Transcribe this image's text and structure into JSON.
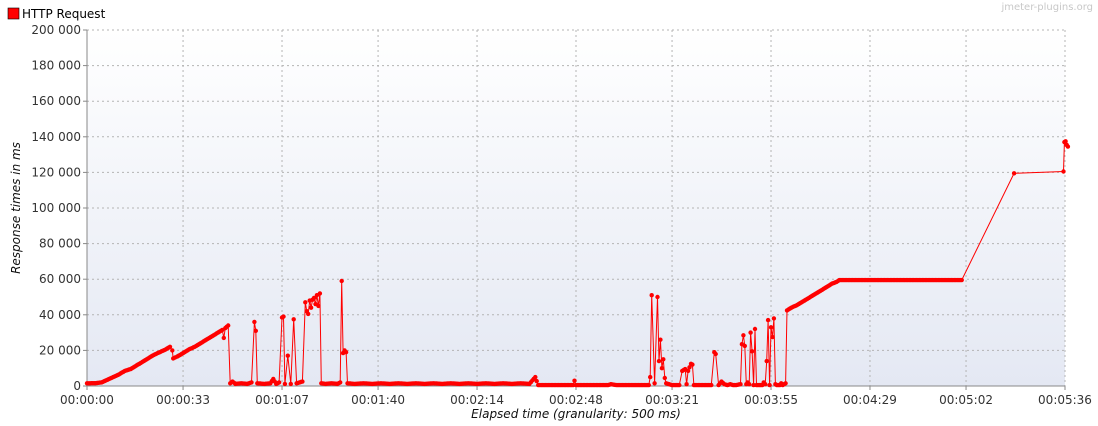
{
  "watermark": "jmeter-plugins.org",
  "chart_data": {
    "type": "line",
    "title": "",
    "xlabel": "Elapsed time (granularity: 500 ms)",
    "ylabel": "Response times in ms",
    "xlim": [
      0,
      336
    ],
    "ylim": [
      0,
      200000
    ],
    "x_ticks": [
      {
        "value": 0,
        "label": "00:00:00"
      },
      {
        "value": 33,
        "label": "00:00:33"
      },
      {
        "value": 67,
        "label": "00:01:07"
      },
      {
        "value": 100,
        "label": "00:01:40"
      },
      {
        "value": 134,
        "label": "00:02:14"
      },
      {
        "value": 168,
        "label": "00:02:48"
      },
      {
        "value": 201,
        "label": "00:03:21"
      },
      {
        "value": 235,
        "label": "00:03:55"
      },
      {
        "value": 269,
        "label": "00:04:29"
      },
      {
        "value": 302,
        "label": "00:05:02"
      },
      {
        "value": 336,
        "label": "00:05:36"
      }
    ],
    "y_ticks": [
      {
        "value": 0,
        "label": "0"
      },
      {
        "value": 20000,
        "label": "20 000"
      },
      {
        "value": 40000,
        "label": "40 000"
      },
      {
        "value": 60000,
        "label": "60 000"
      },
      {
        "value": 80000,
        "label": "80 000"
      },
      {
        "value": 100000,
        "label": "100 000"
      },
      {
        "value": 120000,
        "label": "120 000"
      },
      {
        "value": 140000,
        "label": "140 000"
      },
      {
        "value": 160000,
        "label": "160 000"
      },
      {
        "value": 180000,
        "label": "180 000"
      },
      {
        "value": 200000,
        "label": "200 000"
      }
    ],
    "grid": true,
    "legend_position": "top-left",
    "series": [
      {
        "name": "HTTP Request",
        "color": "#ff0000",
        "points": [
          [
            0,
            1500
          ],
          [
            3,
            1600
          ],
          [
            5,
            2000
          ],
          [
            7,
            3500
          ],
          [
            9,
            5000
          ],
          [
            11,
            6500
          ],
          [
            13,
            8500
          ],
          [
            15,
            9500
          ],
          [
            17,
            11500
          ],
          [
            19,
            13500
          ],
          [
            21,
            15500
          ],
          [
            23,
            17500
          ],
          [
            25,
            19000
          ],
          [
            27,
            20500
          ],
          [
            28.5,
            22000
          ],
          [
            29.3,
            20000
          ],
          [
            29.6,
            15500
          ],
          [
            31,
            16500
          ],
          [
            33,
            18500
          ],
          [
            35,
            20500
          ],
          [
            37,
            22000
          ],
          [
            39,
            24000
          ],
          [
            41,
            26000
          ],
          [
            43,
            28000
          ],
          [
            45,
            30000
          ],
          [
            46.5,
            31500
          ],
          [
            47,
            27000
          ],
          [
            47.5,
            32500
          ],
          [
            48.5,
            34000
          ],
          [
            49.2,
            1500
          ],
          [
            50,
            2500
          ],
          [
            51,
            1200
          ],
          [
            53,
            1500
          ],
          [
            55,
            1200
          ],
          [
            56.5,
            2000
          ],
          [
            57.5,
            36000
          ],
          [
            58,
            31000
          ],
          [
            58.5,
            1500
          ],
          [
            61,
            1200
          ],
          [
            63,
            1500
          ],
          [
            64,
            4000
          ],
          [
            65,
            1200
          ],
          [
            66,
            2000
          ],
          [
            67,
            38500
          ],
          [
            67.5,
            39000
          ],
          [
            68,
            1200
          ],
          [
            69,
            17000
          ],
          [
            70,
            1200
          ],
          [
            71,
            37500
          ],
          [
            72,
            1500
          ],
          [
            74,
            2500
          ],
          [
            75,
            47000
          ],
          [
            75.5,
            42000
          ],
          [
            76,
            40500
          ],
          [
            76.5,
            48000
          ],
          [
            77,
            44000
          ],
          [
            77.5,
            48500
          ],
          [
            78,
            49500
          ],
          [
            78.5,
            46000
          ],
          [
            79,
            51000
          ],
          [
            79.5,
            45000
          ],
          [
            80,
            52000
          ],
          [
            80.5,
            1500
          ],
          [
            82,
            1200
          ],
          [
            84,
            1500
          ],
          [
            86,
            1200
          ],
          [
            87,
            2000
          ],
          [
            87.5,
            59000
          ],
          [
            88,
            18500
          ],
          [
            88.5,
            20000
          ],
          [
            89,
            19000
          ],
          [
            89.5,
            1500
          ],
          [
            92,
            1200
          ],
          [
            95,
            1500
          ],
          [
            98,
            1200
          ],
          [
            101,
            1500
          ],
          [
            104,
            1200
          ],
          [
            107,
            1500
          ],
          [
            110,
            1200
          ],
          [
            113,
            1500
          ],
          [
            116,
            1200
          ],
          [
            119,
            1500
          ],
          [
            122,
            1200
          ],
          [
            125,
            1500
          ],
          [
            128,
            1200
          ],
          [
            131,
            1500
          ],
          [
            134,
            1200
          ],
          [
            137,
            1500
          ],
          [
            140,
            1200
          ],
          [
            143,
            1500
          ],
          [
            146,
            1200
          ],
          [
            149,
            1500
          ],
          [
            152,
            1200
          ],
          [
            154,
            5000
          ],
          [
            155,
            500
          ],
          [
            158,
            500
          ],
          [
            161,
            500
          ],
          [
            164,
            500
          ],
          [
            167,
            500
          ],
          [
            167.5,
            3000
          ],
          [
            168,
            500
          ],
          [
            171,
            500
          ],
          [
            174,
            500
          ],
          [
            177,
            500
          ],
          [
            179,
            500
          ],
          [
            180,
            1000
          ],
          [
            182,
            500
          ],
          [
            185,
            500
          ],
          [
            188,
            500
          ],
          [
            191,
            500
          ],
          [
            193,
            500
          ],
          [
            193.5,
            5000
          ],
          [
            194,
            51000
          ],
          [
            195,
            1500
          ],
          [
            196,
            50000
          ],
          [
            196.5,
            14000
          ],
          [
            197,
            26000
          ],
          [
            197.5,
            10000
          ],
          [
            198,
            15000
          ],
          [
            198.5,
            4500
          ],
          [
            199,
            1500
          ],
          [
            201,
            500
          ],
          [
            203,
            500
          ],
          [
            203.5,
            500
          ],
          [
            204.5,
            8500
          ],
          [
            205.5,
            9500
          ],
          [
            206,
            1000
          ],
          [
            206.5,
            8500
          ],
          [
            207.5,
            12500
          ],
          [
            208,
            12000
          ],
          [
            208.5,
            500
          ],
          [
            211,
            500
          ],
          [
            213,
            500
          ],
          [
            214.5,
            500
          ],
          [
            215.5,
            19000
          ],
          [
            216,
            18000
          ],
          [
            217,
            500
          ],
          [
            218,
            2500
          ],
          [
            219,
            1000
          ],
          [
            220,
            500
          ],
          [
            221,
            1000
          ],
          [
            222,
            500
          ],
          [
            223,
            500
          ],
          [
            224.5,
            1000
          ],
          [
            225,
            23500
          ],
          [
            225.5,
            28500
          ],
          [
            226,
            22500
          ],
          [
            226.5,
            1000
          ],
          [
            227,
            2000
          ],
          [
            227.5,
            1000
          ],
          [
            228,
            30000
          ],
          [
            228.5,
            19500
          ],
          [
            229,
            500
          ],
          [
            229.5,
            32000
          ],
          [
            230,
            500
          ],
          [
            231,
            500
          ],
          [
            232,
            500
          ],
          [
            232.5,
            2000
          ],
          [
            233,
            1000
          ],
          [
            233.5,
            14000
          ],
          [
            234,
            37000
          ],
          [
            234.5,
            500
          ],
          [
            235,
            33000
          ],
          [
            235.5,
            27500
          ],
          [
            236,
            38000
          ],
          [
            236.5,
            1000
          ],
          [
            237,
            500
          ],
          [
            238,
            500
          ],
          [
            238.5,
            1500
          ],
          [
            239,
            500
          ],
          [
            239.5,
            1000
          ],
          [
            240,
            1500
          ],
          [
            240.5,
            42500
          ],
          [
            242,
            44000
          ],
          [
            244,
            45500
          ],
          [
            246,
            47500
          ],
          [
            248,
            49500
          ],
          [
            250,
            51500
          ],
          [
            252,
            53500
          ],
          [
            254,
            55500
          ],
          [
            256,
            57500
          ],
          [
            257.5,
            58500
          ],
          [
            258.5,
            59500
          ],
          [
            260,
            59500
          ],
          [
            270,
            59500
          ],
          [
            280,
            59500
          ],
          [
            290,
            59500
          ],
          [
            299,
            59500
          ],
          [
            300.5,
            59500
          ],
          [
            318.5,
            119500
          ],
          [
            335.5,
            120500
          ],
          [
            335.8,
            137000
          ],
          [
            336.2,
            137500
          ],
          [
            336.6,
            135500
          ],
          [
            337,
            134500
          ]
        ]
      }
    ]
  }
}
